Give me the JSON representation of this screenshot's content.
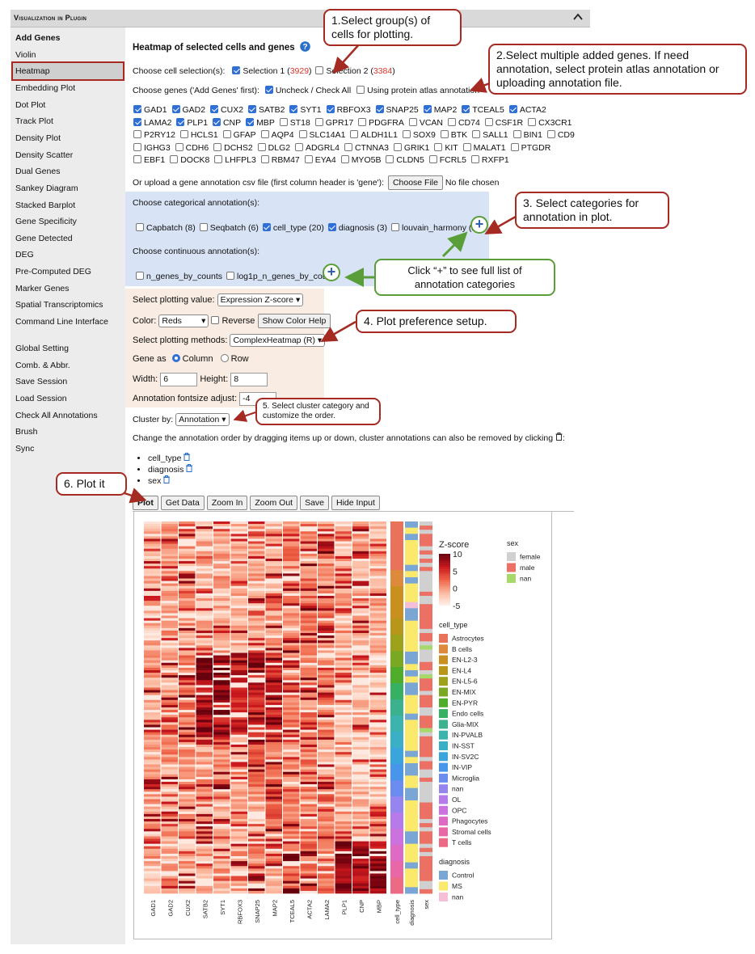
{
  "titlebar": {
    "title": "Visualization in Plugin"
  },
  "sidebar": {
    "items": [
      "Add Genes",
      "Violin",
      "Heatmap",
      "Embedding Plot",
      "Dot Plot",
      "Track Plot",
      "Density Plot",
      "Density Scatter",
      "Dual Genes",
      "Sankey Diagram",
      "Stacked Barplot",
      "Gene Specificity",
      "Gene Detected",
      "DEG",
      "Pre-Computed DEG",
      "Marker Genes",
      "Spatial Transcriptomics",
      "Command Line Interface"
    ],
    "items2": [
      "Global Setting",
      "Comb. & Abbr.",
      "Save Session",
      "Load Session",
      "Check All Annotations",
      "Brush",
      "Sync"
    ]
  },
  "main": {
    "heading": "Heatmap of selected cells and genes",
    "cell_sel_label": "Choose cell selection(s):",
    "sel1_label": "Selection 1 (",
    "sel1_count": "3929",
    "sel2_label": "Selection 2 (",
    "sel2_count": "3384",
    "close_paren": ")",
    "genes_label": "Choose genes ('Add Genes' first):",
    "uncheck_label": "Uncheck / Check All",
    "protein_label": "Using protein atlas annotation",
    "genes": [
      {
        "name": "GAD1",
        "on": true
      },
      {
        "name": "GAD2",
        "on": true
      },
      {
        "name": "CUX2",
        "on": true
      },
      {
        "name": "SATB2",
        "on": true
      },
      {
        "name": "SYT1",
        "on": true
      },
      {
        "name": "RBFOX3",
        "on": true
      },
      {
        "name": "SNAP25",
        "on": true
      },
      {
        "name": "MAP2",
        "on": true
      },
      {
        "name": "TCEAL5",
        "on": true
      },
      {
        "name": "ACTA2",
        "on": true
      },
      {
        "name": "LAMA2",
        "on": true
      },
      {
        "name": "PLP1",
        "on": true
      },
      {
        "name": "CNP",
        "on": true
      },
      {
        "name": "MBP",
        "on": true
      },
      {
        "name": "ST18",
        "on": false
      },
      {
        "name": "GPR17",
        "on": false
      },
      {
        "name": "PDGFRA",
        "on": false
      },
      {
        "name": "VCAN",
        "on": false
      },
      {
        "name": "CD74",
        "on": false
      },
      {
        "name": "CSF1R",
        "on": false
      },
      {
        "name": "CX3CR1",
        "on": false
      },
      {
        "name": "P2RY12",
        "on": false
      },
      {
        "name": "HCLS1",
        "on": false
      },
      {
        "name": "GFAP",
        "on": false
      },
      {
        "name": "AQP4",
        "on": false
      },
      {
        "name": "SLC14A1",
        "on": false
      },
      {
        "name": "ALDH1L1",
        "on": false
      },
      {
        "name": "SOX9",
        "on": false
      },
      {
        "name": "BTK",
        "on": false
      },
      {
        "name": "SALL1",
        "on": false
      },
      {
        "name": "BIN1",
        "on": false
      },
      {
        "name": "CD9",
        "on": false
      },
      {
        "name": "IGHG3",
        "on": false
      },
      {
        "name": "CDH6",
        "on": false
      },
      {
        "name": "DCHS2",
        "on": false
      },
      {
        "name": "DLG2",
        "on": false
      },
      {
        "name": "ADGRL4",
        "on": false
      },
      {
        "name": "CTNNA3",
        "on": false
      },
      {
        "name": "GRIK1",
        "on": false
      },
      {
        "name": "KIT",
        "on": false
      },
      {
        "name": "MALAT1",
        "on": false
      },
      {
        "name": "PTGDR",
        "on": false
      },
      {
        "name": "EBF1",
        "on": false
      },
      {
        "name": "DOCK8",
        "on": false
      },
      {
        "name": "LHFPL3",
        "on": false
      },
      {
        "name": "RBM47",
        "on": false
      },
      {
        "name": "EYA4",
        "on": false
      },
      {
        "name": "MYO5B",
        "on": false
      },
      {
        "name": "CLDN5",
        "on": false
      },
      {
        "name": "FCRL5",
        "on": false
      },
      {
        "name": "RXFP1",
        "on": false
      }
    ],
    "upload_label": "Or upload a gene annotation csv file (first column header is 'gene'):",
    "choose_file": "Choose File",
    "no_file": "No file chosen",
    "cat_label": "Choose categorical annotation(s):",
    "cat_items": [
      {
        "name": "Capbatch (8)",
        "on": false
      },
      {
        "name": "Seqbatch (6)",
        "on": false
      },
      {
        "name": "cell_type (20)",
        "on": true
      },
      {
        "name": "diagnosis (3)",
        "on": true
      },
      {
        "name": "louvain_harmony (27)",
        "on": false
      }
    ],
    "cont_label": "Choose continuous annotation(s):",
    "cont_items": [
      {
        "name": "n_genes_by_counts",
        "on": false
      },
      {
        "name": "log1p_n_genes_by_counts",
        "on": false
      }
    ],
    "plot_value_label": "Select plotting value:",
    "plot_value": "Expression Z-score",
    "color_label": "Color:",
    "color_value": "Reds",
    "reverse_label": "Reverse",
    "color_help": "Show Color Help",
    "method_label": "Select plotting methods:",
    "method_value": "ComplexHeatmap (R)",
    "gene_as_label": "Gene as",
    "column_label": "Column",
    "row_label": "Row",
    "width_label": "Width:",
    "width_value": "6",
    "height_label": "Height:",
    "height_value": "8",
    "fontsize_label": "Annotation fontsize adjust:",
    "fontsize_value": "-4",
    "cluster_label": "Cluster by:",
    "cluster_value": "Annotation",
    "order_text": "Change the annotation order by dragging items up or down, cluster annotations can also be removed by clicking",
    "order_items": [
      "cell_type",
      "diagnosis",
      "sex"
    ],
    "buttons": [
      "Plot",
      "Get Data",
      "Zoom In",
      "Zoom Out",
      "Save",
      "Hide Input"
    ]
  },
  "callouts": {
    "c1": "1.Select group(s) of cells for plotting.",
    "c2": "2.Select multiple added genes. If need annotation, select protein atlas annotation or uploading annotation file.",
    "c3": "3. Select categories for annotation in plot.",
    "c_plus": "Click “+” to see full list of annotation categories",
    "c4": "4. Plot preference setup.",
    "c5": "5. Select cluster category and customize the order.",
    "c6": "6. Plot it"
  },
  "chart_data": {
    "type": "heatmap",
    "columns": [
      "GAD1",
      "GAD2",
      "CUX2",
      "SATB2",
      "SYT1",
      "RBFOX3",
      "SNAP25",
      "MAP2",
      "TCEAL5",
      "ACTA2",
      "LAMA2",
      "PLP1",
      "CNP",
      "MBP"
    ],
    "annotation_columns": [
      "cell_type",
      "diagnosis",
      "sex"
    ],
    "colorbar": {
      "title": "Z-score",
      "ticks": [
        "10",
        "5",
        "0",
        "-5"
      ],
      "range": [
        -5,
        10
      ],
      "palette": "Reds"
    },
    "legend_sex": {
      "title": "sex",
      "items": [
        {
          "label": "female",
          "color": "#d0d0d0"
        },
        {
          "label": "male",
          "color": "#ec7063"
        },
        {
          "label": "nan",
          "color": "#a6d96a"
        }
      ]
    },
    "legend_cell_type": {
      "title": "cell_type",
      "items": [
        {
          "label": "Astrocytes",
          "color": "#e8735a"
        },
        {
          "label": "B cells",
          "color": "#de8a3c"
        },
        {
          "label": "EN-L2-3",
          "color": "#c98f1f"
        },
        {
          "label": "EN-L4",
          "color": "#b8961a"
        },
        {
          "label": "EN-L5-6",
          "color": "#9ea21b"
        },
        {
          "label": "EN-MIX",
          "color": "#7aa822"
        },
        {
          "label": "EN-PYR",
          "color": "#50ad2c"
        },
        {
          "label": "Endo cells",
          "color": "#37b062"
        },
        {
          "label": "Glia-MIX",
          "color": "#3bb28d"
        },
        {
          "label": "IN-PVALB",
          "color": "#3db3ad"
        },
        {
          "label": "IN-SST",
          "color": "#3aafc6"
        },
        {
          "label": "IN-SV2C",
          "color": "#3aa5dd"
        },
        {
          "label": "IN-VIP",
          "color": "#4796ec"
        },
        {
          "label": "Microglia",
          "color": "#6b8df0"
        },
        {
          "label": "nan",
          "color": "#9685ef"
        },
        {
          "label": "OL",
          "color": "#b67be9"
        },
        {
          "label": "OPC",
          "color": "#cc72de"
        },
        {
          "label": "Phagocytes",
          "color": "#dd6bc6"
        },
        {
          "label": "Stromal cells",
          "color": "#e767a7"
        },
        {
          "label": "T cells",
          "color": "#ed6a86"
        }
      ]
    },
    "legend_diagnosis": {
      "title": "diagnosis",
      "items": [
        {
          "label": "Control",
          "color": "#7aa6d6"
        },
        {
          "label": "MS",
          "color": "#fbe96b"
        },
        {
          "label": "nan",
          "color": "#f5bfd8"
        }
      ]
    }
  }
}
